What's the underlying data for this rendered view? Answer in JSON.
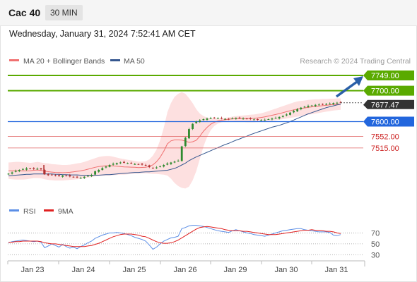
{
  "header": {
    "title": "Cac 40",
    "interval": "30 MIN"
  },
  "date_line": "Wednesday, January 31, 2024 7:52:41 AM CET",
  "copyright": "Research © 2024 Trading Central",
  "colors": {
    "resistance": "#5aaa00",
    "support": "#2266dd",
    "support_minor": "#e06060",
    "ma20": "#f07070",
    "ma50": "#35578f",
    "band_fill": "#fde0e0",
    "candle_up": "#2f8a2f",
    "candle_down": "#b03030",
    "rsi": "#5b8ee6",
    "rsi_ma": "#e02020",
    "arrow": "#2a5fa8"
  },
  "chart_data": [
    {
      "type": "candlestick",
      "legend": [
        {
          "name": "MA 20 + Bollinger Bands",
          "color": "#f07070"
        },
        {
          "name": "MA 50",
          "color": "#35578f"
        }
      ],
      "x_ticks": [
        "Jan 23",
        "Jan 24",
        "Jan 25",
        "Jan 26",
        "Jan 29",
        "Jan 30",
        "Jan 31"
      ],
      "y_range": [
        7410,
        7765
      ],
      "current_price": "7677.47",
      "levels": [
        {
          "label": "7749.00",
          "value": 7749,
          "kind": "resistance"
        },
        {
          "label": "7700.00",
          "value": 7700,
          "kind": "resistance"
        },
        {
          "label": "7600.00",
          "value": 7600,
          "kind": "support"
        },
        {
          "label": "7552.00",
          "value": 7552,
          "kind": "support_minor"
        },
        {
          "label": "7515.00",
          "value": 7515,
          "kind": "support_minor"
        }
      ],
      "close": [
        7432,
        7436,
        7441,
        7444,
        7447,
        7449,
        7448,
        7447,
        7448,
        7446,
        7430,
        7427,
        7428,
        7426,
        7424,
        7426,
        7425,
        7423,
        7421,
        7420,
        7418,
        7422,
        7425,
        7428,
        7440,
        7444,
        7450,
        7455,
        7460,
        7464,
        7466,
        7468,
        7467,
        7466,
        7465,
        7463,
        7462,
        7461,
        7458,
        7453,
        7450,
        7452,
        7456,
        7460,
        7465,
        7468,
        7471,
        7474,
        7520,
        7548,
        7576,
        7593,
        7600,
        7604,
        7608,
        7610,
        7611,
        7612,
        7611,
        7610,
        7609,
        7608,
        7610,
        7612,
        7611,
        7610,
        7609,
        7608,
        7607,
        7606,
        7605,
        7606,
        7608,
        7610,
        7612,
        7615,
        7618,
        7623,
        7629,
        7635,
        7640,
        7645,
        7648,
        7651,
        7652,
        7654,
        7655,
        7656,
        7657,
        7658,
        7660,
        7661,
        7661
      ],
      "upper_band": [
        7468,
        7469,
        7470,
        7470,
        7469,
        7468,
        7467,
        7468,
        7470,
        7468,
        7466,
        7465,
        7463,
        7462,
        7461,
        7460,
        7460,
        7461,
        7463,
        7465,
        7467,
        7470,
        7474,
        7478,
        7482,
        7486,
        7488,
        7489,
        7489,
        7487,
        7484,
        7481,
        7479,
        7477,
        7475,
        7473,
        7471,
        7471,
        7472,
        7478,
        7490,
        7510,
        7540,
        7580,
        7630,
        7660,
        7680,
        7690,
        7695,
        7690,
        7676,
        7660,
        7640,
        7626,
        7618,
        7613,
        7611,
        7610,
        7610,
        7611,
        7612,
        7614,
        7616,
        7618,
        7619,
        7620,
        7621,
        7622,
        7623,
        7625,
        7627,
        7630,
        7634,
        7638,
        7642,
        7646,
        7650,
        7654,
        7658,
        7662,
        7665,
        7667,
        7668,
        7670,
        7671,
        7672,
        7672,
        7673,
        7673,
        7674,
        7674,
        7675,
        7675
      ],
      "lower_band": [
        7415,
        7414,
        7413,
        7413,
        7413,
        7414,
        7416,
        7418,
        7418,
        7417,
        7414,
        7412,
        7411,
        7410,
        7410,
        7410,
        7411,
        7412,
        7413,
        7414,
        7415,
        7417,
        7419,
        7421,
        7423,
        7424,
        7425,
        7426,
        7426,
        7427,
        7428,
        7429,
        7429,
        7430,
        7431,
        7432,
        7432,
        7433,
        7433,
        7432,
        7431,
        7431,
        7430,
        7429,
        7426,
        7416,
        7402,
        7392,
        7386,
        7384,
        7390,
        7410,
        7440,
        7480,
        7520,
        7550,
        7572,
        7586,
        7594,
        7598,
        7600,
        7602,
        7602,
        7601,
        7600,
        7599,
        7598,
        7598,
        7598,
        7599,
        7600,
        7601,
        7602,
        7603,
        7604,
        7606,
        7608,
        7610,
        7612,
        7614,
        7616,
        7618,
        7620,
        7622,
        7624,
        7626,
        7628,
        7630,
        7632,
        7634,
        7636,
        7637,
        7638
      ],
      "ma50": [
        7425,
        7426,
        7427,
        7428,
        7429,
        7430,
        7430,
        7431,
        7431,
        7431,
        7431,
        7431,
        7431,
        7430,
        7430,
        7429,
        7429,
        7428,
        7428,
        7428,
        7427,
        7427,
        7427,
        7427,
        7427,
        7427,
        7428,
        7429,
        7429,
        7430,
        7431,
        7432,
        7433,
        7434,
        7435,
        7436,
        7436,
        7437,
        7438,
        7438,
        7439,
        7440,
        7441,
        7442,
        7443,
        7446,
        7449,
        7454,
        7460,
        7466,
        7474,
        7480,
        7486,
        7491,
        7496,
        7501,
        7506,
        7511,
        7516,
        7521,
        7526,
        7530,
        7535,
        7540,
        7544,
        7549,
        7553,
        7558,
        7562,
        7566,
        7570,
        7574,
        7578,
        7582,
        7585,
        7588,
        7592,
        7596,
        7600,
        7605,
        7610,
        7615,
        7620,
        7625,
        7629,
        7633,
        7637,
        7641,
        7645,
        7648,
        7651,
        7654,
        7656
      ]
    },
    {
      "type": "line",
      "legend": [
        {
          "name": "RSI",
          "color": "#5b8ee6"
        },
        {
          "name": "9MA",
          "color": "#e02020"
        }
      ],
      "y_ticks": [
        30,
        50,
        70
      ],
      "y_range": [
        20,
        90
      ],
      "rsi": [
        52,
        54,
        55,
        56,
        57,
        56,
        55,
        54,
        55,
        53,
        43,
        46,
        50,
        47,
        44,
        49,
        45,
        42,
        44,
        41,
        45,
        48,
        52,
        55,
        60,
        63,
        66,
        68,
        70,
        70,
        71,
        70,
        69,
        67,
        65,
        62,
        60,
        58,
        55,
        48,
        40,
        44,
        50,
        55,
        58,
        61,
        62,
        64,
        78,
        80,
        83,
        84,
        84,
        83,
        82,
        80,
        78,
        76,
        74,
        73,
        72,
        71,
        74,
        76,
        74,
        72,
        70,
        69,
        67,
        66,
        65,
        64,
        66,
        68,
        70,
        72,
        74,
        75,
        76,
        77,
        78,
        78,
        76,
        75,
        74,
        73,
        72,
        72,
        72,
        71,
        66,
        65,
        67
      ],
      "rsi_ma": [
        53,
        53,
        54,
        54,
        55,
        55,
        55,
        55,
        55,
        54,
        52,
        51,
        50,
        50,
        49,
        48,
        47,
        46,
        45,
        45,
        45,
        45,
        46,
        47,
        49,
        51,
        54,
        57,
        60,
        63,
        65,
        67,
        68,
        68,
        68,
        67,
        66,
        64,
        63,
        60,
        57,
        54,
        52,
        51,
        51,
        52,
        54,
        57,
        61,
        65,
        69,
        73,
        77,
        80,
        81,
        82,
        81,
        80,
        79,
        78,
        76,
        75,
        74,
        74,
        74,
        73,
        73,
        72,
        71,
        70,
        69,
        68,
        67,
        67,
        67,
        68,
        69,
        70,
        71,
        72,
        73,
        74,
        75,
        75,
        76,
        75,
        75,
        74,
        73,
        73,
        72,
        70,
        69
      ]
    }
  ]
}
